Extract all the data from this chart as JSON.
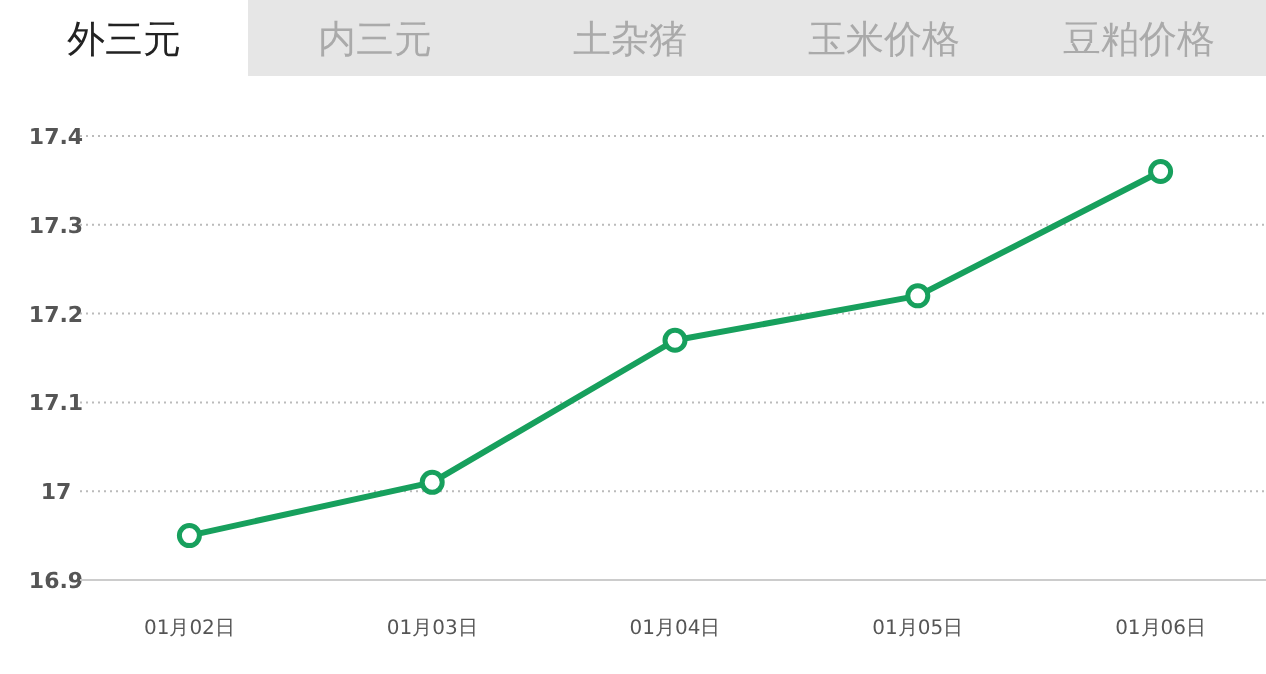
{
  "chart_data": {
    "type": "line",
    "annotations": [
      "外三元",
      "内三元",
      "土杂猪",
      "玉米价格",
      "豆粕价格"
    ],
    "categories": [
      "01月02日",
      "01月03日",
      "01月04日",
      "01月05日",
      "01月06日"
    ],
    "series": [
      {
        "color": "#17a05d",
        "values": [
          16.95,
          17.01,
          17.17,
          17.22,
          17.36
        ]
      }
    ],
    "ylim": [
      16.9,
      17.4
    ],
    "yticks": [
      16.9,
      17,
      17.1,
      17.2,
      17.3,
      17.4
    ],
    "grid": "y",
    "marker": "circle",
    "line_style": "solid"
  }
}
